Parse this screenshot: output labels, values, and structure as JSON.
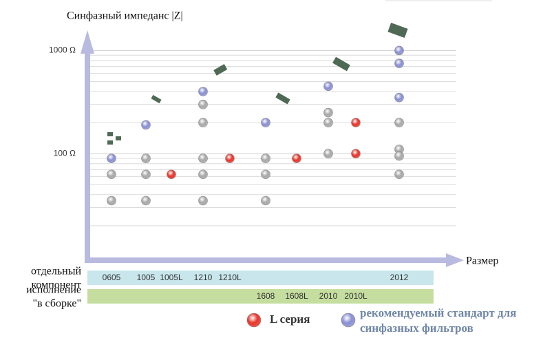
{
  "chart_data": {
    "type": "dot",
    "title": "Синфазный импеданс |Z|",
    "x_label": "Размер",
    "categories": [
      "0605",
      "1005",
      "1005L",
      "1210",
      "1210L",
      "1608",
      "1608L",
      "2010",
      "2010L",
      "2012"
    ],
    "category_colors": [
      "#333333",
      "#333333",
      "#d23c34",
      "#333333",
      "#d23c34",
      "#333333",
      "#d23c34",
      "#333333",
      "#d23c34",
      "#333333"
    ],
    "category_row": [
      0,
      0,
      0,
      0,
      0,
      1,
      1,
      1,
      1,
      0
    ],
    "rows": [
      {
        "label": [
          "отдельный",
          "компонент"
        ],
        "color": "#c8e6ec"
      },
      {
        "label": [
          "исполнение",
          "\"в сборке\""
        ],
        "color": "#c5dea0"
      }
    ],
    "log_scale": true,
    "ylim": [
      10,
      1500
    ],
    "yticks": [
      {
        "value": 100,
        "label": "100 Ω"
      },
      {
        "value": 1000,
        "label": "1000 Ω"
      }
    ],
    "minor_grid": [
      20,
      30,
      40,
      50,
      60,
      70,
      80,
      90,
      200,
      300,
      400,
      500,
      600,
      700,
      800,
      900
    ],
    "series": [
      {
        "color": "#a8a8a8",
        "values": [
          [
            63,
            35
          ],
          [
            90,
            63,
            35
          ],
          [],
          [
            300,
            200,
            90,
            63,
            35
          ],
          [],
          [
            90,
            63,
            35
          ],
          [],
          [
            250,
            200,
            100
          ],
          [],
          [
            200,
            110,
            95,
            63
          ]
        ]
      },
      {
        "name": "L серия",
        "color": "#e8352a",
        "values": [
          [],
          [],
          [
            63
          ],
          [],
          [
            90
          ],
          [],
          [
            90
          ],
          [],
          [
            200,
            100
          ],
          []
        ]
      },
      {
        "name": "рекомендуемый стандарт для синфазных фильтров",
        "color": "#8a8fd4",
        "values": [
          [
            90
          ],
          [
            190
          ],
          [],
          [
            400
          ],
          [],
          [
            200
          ],
          [],
          [
            450
          ],
          [],
          [
            1000,
            750,
            350
          ]
        ]
      }
    ]
  }
}
